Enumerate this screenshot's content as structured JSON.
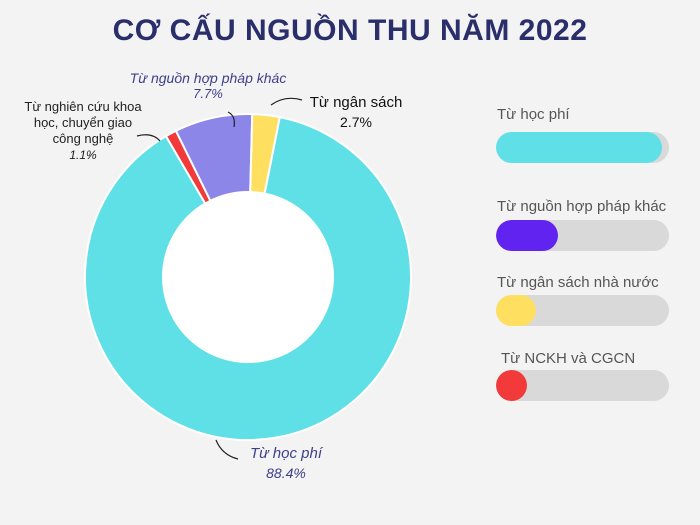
{
  "title": "CƠ CẤU NGUỒN THU NĂM 2022",
  "chart_data": [
    {
      "type": "pie",
      "donut": true,
      "series": [
        {
          "name": "Từ học phí",
          "value": 88.4,
          "value_label": "88.4%",
          "color": "#5ee0e6"
        },
        {
          "name": "Từ nghiên cứu khoa học, chuyển giao công nghệ",
          "value": 1.1,
          "value_label": "1.1%",
          "color": "#f23a3a"
        },
        {
          "name": "Từ nguồn hợp pháp khác",
          "value": 7.7,
          "value_label": "7.7%",
          "color": "#8c86e8"
        },
        {
          "name": "Từ ngân sách",
          "value": 2.7,
          "value_label": "2.7%",
          "color": "#ffdf60"
        }
      ],
      "labels": {
        "hoc_phi": {
          "name": "Từ học phí",
          "value": "88.4%"
        },
        "nckh": {
          "line1": "Từ nghiên cứu khoa",
          "line2": "học, chuyển giao",
          "line3": "công nghệ",
          "value": "1.1%"
        },
        "hop_phap": {
          "name": "Từ nguồn hợp pháp khác",
          "value": "7.7%"
        },
        "ngan_sach": {
          "name": "Từ ngân sách",
          "value": "2.7%"
        }
      }
    },
    {
      "type": "bar",
      "orientation": "horizontal",
      "categories": [
        "Từ học phí",
        "Từ nguồn hợp pháp khác",
        "Từ ngân sách nhà nước",
        "Từ NCKH và CGCN"
      ],
      "values": [
        96,
        36,
        23,
        18
      ],
      "unit": "percent of track",
      "colors": [
        "#5ee0e6",
        "#6124f0",
        "#ffdf60",
        "#f23a3a"
      ]
    }
  ]
}
